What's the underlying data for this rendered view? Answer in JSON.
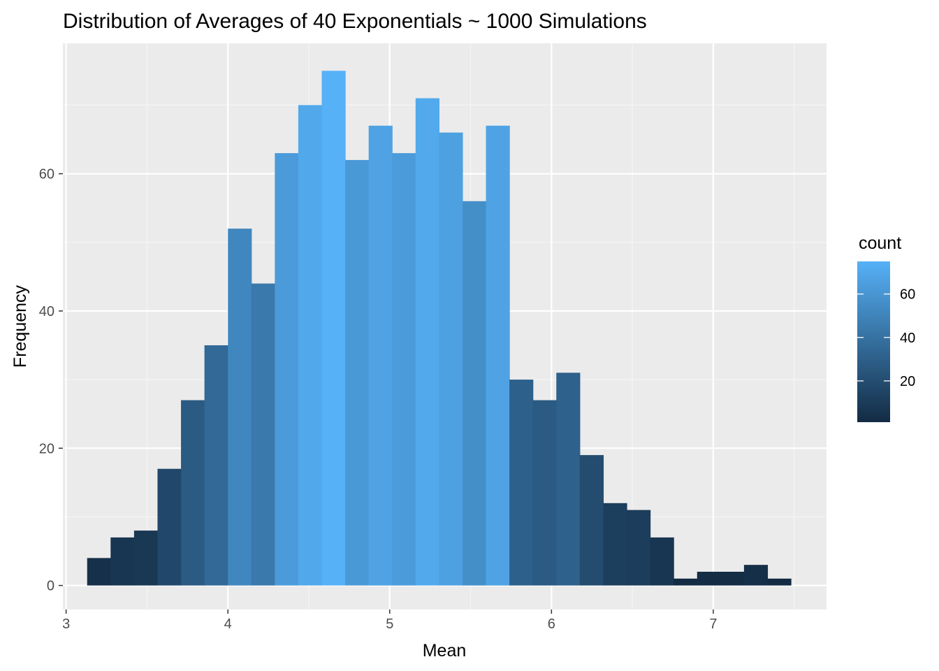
{
  "chart_data": {
    "type": "bar",
    "subtype": "histogram",
    "title": "Distribution of Averages of 40 Exponentials ~ 1000 Simulations",
    "xlabel": "Mean",
    "ylabel": "Frequency",
    "xlim": [
      2.98,
      7.7
    ],
    "ylim": [
      -3.5,
      79
    ],
    "x_ticks": [
      3,
      4,
      5,
      6,
      7
    ],
    "y_ticks": [
      0,
      20,
      40,
      60
    ],
    "x_minor_ticks": [
      3.5,
      4.5,
      5.5,
      6.5,
      7.5
    ],
    "y_minor_ticks": [
      10,
      30,
      50,
      70
    ],
    "grid": true,
    "bin_width": 0.145,
    "bin_start": 3.13,
    "values": [
      4,
      7,
      8,
      17,
      27,
      35,
      52,
      44,
      63,
      70,
      75,
      62,
      67,
      63,
      71,
      66,
      56,
      67,
      30,
      27,
      31,
      19,
      12,
      11,
      7,
      1,
      2,
      2,
      3,
      1
    ],
    "fill_scale": {
      "low": "#132b43",
      "high": "#56b1f7",
      "min": 1,
      "max": 75
    },
    "legend": {
      "title": "count",
      "placement": "right",
      "breaks": [
        20,
        40,
        60
      ]
    },
    "colors": {
      "panel": "#ebebeb",
      "grid_major": "#ffffff",
      "grid_minor": "#f5f5f5",
      "tick_text": "#4d4d4d",
      "tick_mark": "#333333"
    }
  }
}
